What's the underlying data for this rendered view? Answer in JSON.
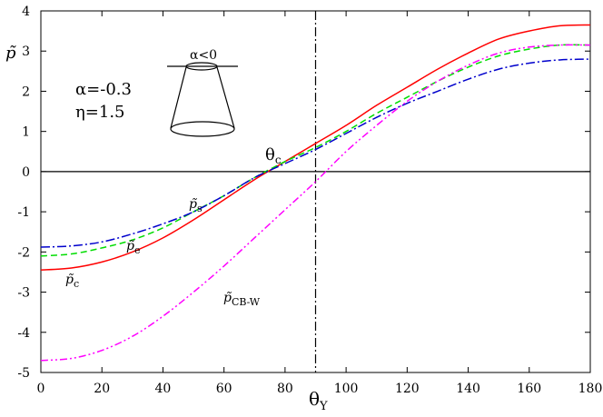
{
  "chart_data": {
    "type": "line",
    "xlabel": "θY",
    "xlabel_main": "θ",
    "xlabel_sub": "Y",
    "ylabel": "p̃",
    "xlim": [
      0,
      180
    ],
    "ylim": [
      -5,
      4
    ],
    "xticks": [
      "0",
      "20",
      "40",
      "60",
      "80",
      "100",
      "120",
      "140",
      "160",
      "180"
    ],
    "yticks": [
      "-5",
      "-4",
      "-3",
      "-2",
      "-1",
      "0",
      "1",
      "2",
      "3",
      "4"
    ],
    "grid": false,
    "legend": "none",
    "reference_lines": {
      "horizontal_y": 0,
      "vertical_x": 90
    },
    "annotations": {
      "alpha": "α=-0.3",
      "eta": "η=1.5",
      "cone": "α<0",
      "theta_c_main": "θ",
      "theta_c_sub": "c"
    },
    "series": [
      {
        "label_main": "p̃",
        "label_sub": "c",
        "color": "#ff0000",
        "style": "solid",
        "x": [
          0,
          10,
          20,
          30,
          40,
          50,
          60,
          70,
          80,
          90,
          100,
          110,
          120,
          130,
          140,
          150,
          160,
          170,
          180
        ],
        "y": [
          -2.45,
          -2.4,
          -2.25,
          -2.0,
          -1.65,
          -1.2,
          -0.7,
          -0.2,
          0.25,
          0.7,
          1.15,
          1.65,
          2.1,
          2.55,
          2.95,
          3.3,
          3.5,
          3.63,
          3.65
        ]
      },
      {
        "label_main": "p̃",
        "label_sub": "e",
        "color": "#00dd00",
        "style": "dashed",
        "x": [
          0,
          10,
          20,
          30,
          40,
          50,
          60,
          70,
          80,
          90,
          100,
          110,
          120,
          130,
          140,
          150,
          160,
          170,
          180
        ],
        "y": [
          -2.1,
          -2.05,
          -1.9,
          -1.7,
          -1.4,
          -1.0,
          -0.6,
          -0.15,
          0.25,
          0.6,
          1.0,
          1.45,
          1.85,
          2.25,
          2.6,
          2.88,
          3.05,
          3.15,
          3.15
        ]
      },
      {
        "label_main": "p̃",
        "label_sub": "s",
        "color": "#0000cc",
        "style": "dashdot",
        "x": [
          0,
          10,
          20,
          30,
          40,
          50,
          60,
          70,
          80,
          90,
          100,
          110,
          120,
          130,
          140,
          150,
          160,
          170,
          180
        ],
        "y": [
          -1.88,
          -1.85,
          -1.75,
          -1.55,
          -1.3,
          -1.0,
          -0.6,
          -0.15,
          0.2,
          0.55,
          0.95,
          1.35,
          1.7,
          2.0,
          2.3,
          2.55,
          2.7,
          2.78,
          2.8
        ]
      },
      {
        "label_main": "p̃",
        "label_sub": "CB-W",
        "color": "#ff00ff",
        "style": "dashdotdot",
        "x": [
          0,
          10,
          20,
          30,
          40,
          50,
          60,
          70,
          80,
          90,
          100,
          110,
          120,
          130,
          140,
          150,
          160,
          170,
          180
        ],
        "y": [
          -4.7,
          -4.65,
          -4.45,
          -4.1,
          -3.6,
          -3.0,
          -2.35,
          -1.65,
          -0.95,
          -0.25,
          0.5,
          1.15,
          1.75,
          2.25,
          2.65,
          2.95,
          3.1,
          3.15,
          3.15
        ]
      }
    ]
  }
}
